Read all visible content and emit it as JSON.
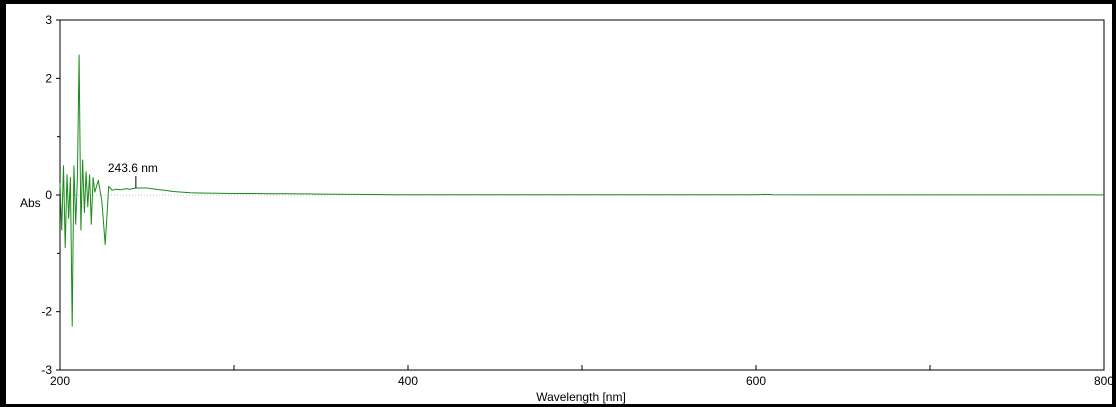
{
  "chart_data": {
    "type": "line",
    "title": "",
    "xlabel": "Wavelength [nm]",
    "ylabel": "Abs",
    "xlim": [
      200,
      800
    ],
    "ylim": [
      -3,
      3
    ],
    "x_ticks": [
      200,
      300,
      400,
      500,
      600,
      700,
      800
    ],
    "x_tick_labels": [
      "200",
      "",
      "400",
      "",
      "600",
      "",
      "800"
    ],
    "y_ticks": [
      -3,
      -2,
      0,
      2,
      3
    ],
    "y_tick_labels": [
      "-3",
      "-2",
      "0",
      "2",
      "3"
    ],
    "grid": false,
    "legend": "none",
    "colors": {
      "series": "#1a8a1a",
      "axis": "#000000",
      "baseline": "#bdbdbd"
    },
    "annotations": [
      {
        "label": "243.6 nm",
        "x": 243.6,
        "y": 0.12
      }
    ],
    "series": [
      {
        "x": [
          200,
          201,
          202,
          203,
          204,
          205,
          206,
          207,
          208,
          209,
          210,
          211,
          212,
          213,
          214,
          215,
          216,
          217,
          218,
          219,
          220,
          222,
          224,
          226,
          228,
          230,
          232,
          235,
          238,
          240,
          243.6,
          246,
          250,
          255,
          260,
          265,
          270,
          275,
          280,
          290,
          300,
          310,
          320,
          330,
          340,
          350,
          360,
          370,
          380,
          390,
          400,
          450,
          500,
          550,
          600,
          605,
          610,
          650,
          700,
          750,
          800
        ],
        "y": [
          0.2,
          -0.6,
          0.5,
          -0.9,
          0.35,
          -0.4,
          0.3,
          -2.25,
          0.5,
          -0.5,
          0.3,
          2.4,
          -0.6,
          0.6,
          -0.3,
          0.4,
          -0.2,
          0.35,
          -0.5,
          0.3,
          0.05,
          0.25,
          -0.1,
          -0.85,
          0.15,
          0.08,
          0.1,
          0.09,
          0.11,
          0.1,
          0.12,
          0.12,
          0.12,
          0.1,
          0.08,
          0.06,
          0.05,
          0.04,
          0.035,
          0.03,
          0.025,
          0.025,
          0.02,
          0.02,
          0.018,
          0.015,
          0.012,
          0.01,
          0.008,
          0.006,
          0.005,
          0.004,
          0.003,
          0.003,
          0.003,
          0.01,
          0.004,
          0.002,
          0.002,
          0.002,
          0.002
        ]
      }
    ]
  }
}
